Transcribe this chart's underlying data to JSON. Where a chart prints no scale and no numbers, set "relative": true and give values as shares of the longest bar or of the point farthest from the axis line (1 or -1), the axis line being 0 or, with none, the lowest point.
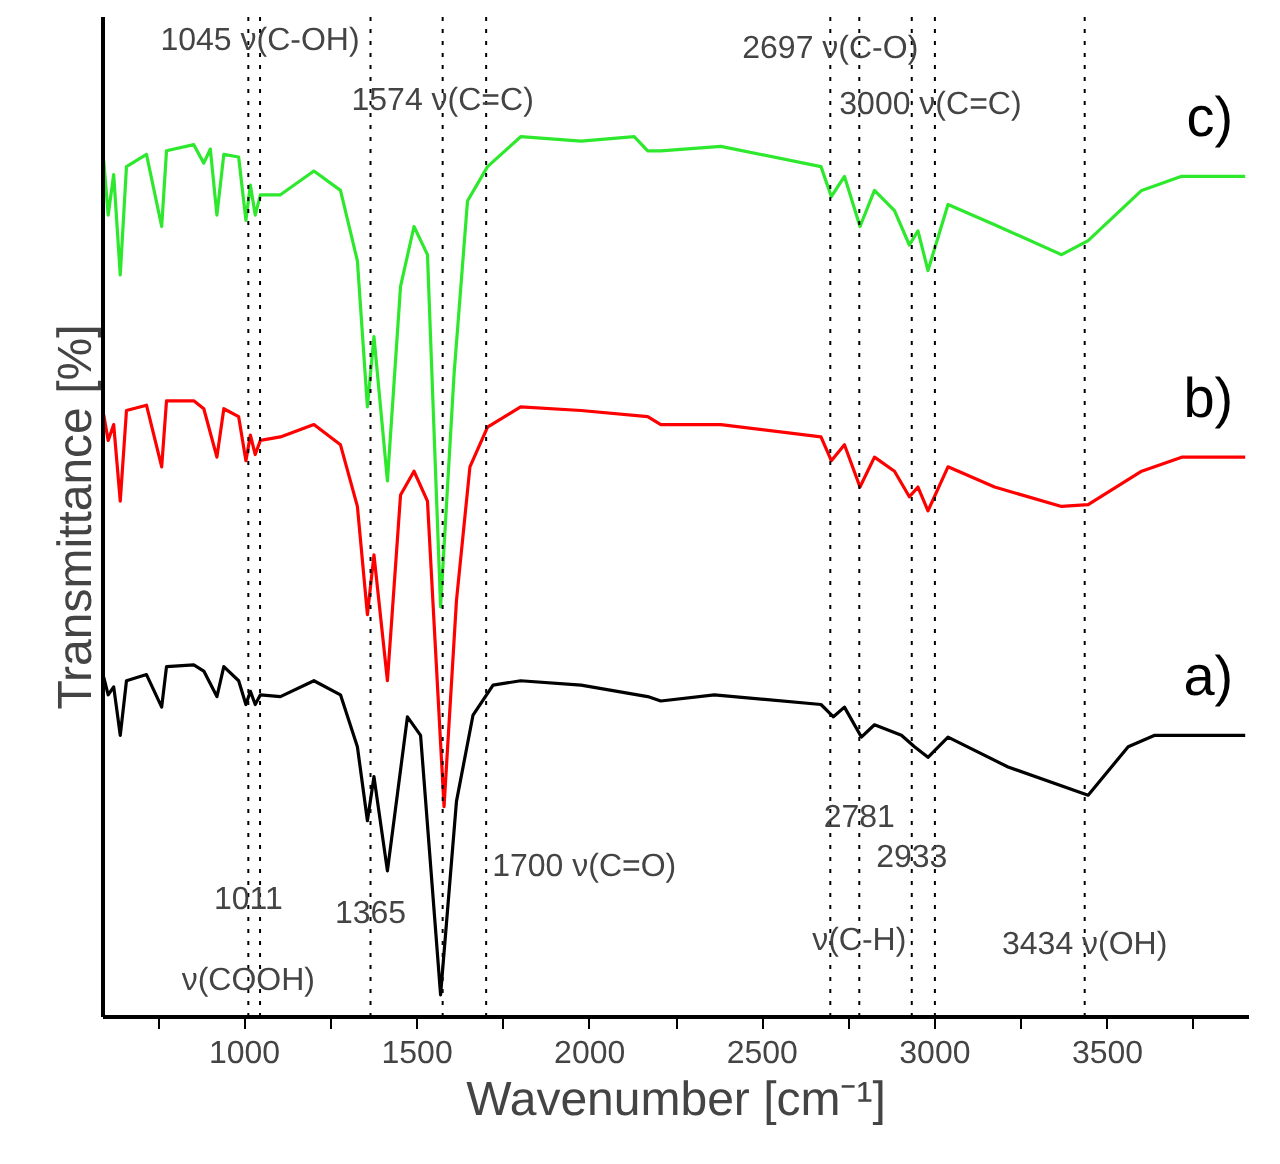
{
  "chart_data": {
    "type": "line",
    "relative": true,
    "xlabel": "Wavenumber [cm⁻¹]",
    "ylabel": "Transmittance [%]",
    "xlim": [
      590,
      3910
    ],
    "xticks": [
      {
        "value": 750,
        "label": null
      },
      1000,
      {
        "value": 1250,
        "label": null
      },
      1500,
      {
        "value": 1750,
        "label": null
      },
      2000,
      {
        "value": 2250,
        "label": null
      },
      2500,
      {
        "value": 2750,
        "label": null
      },
      3000,
      {
        "value": 3250,
        "label": null
      },
      3500,
      {
        "value": 3750,
        "label": null
      }
    ],
    "grid": false,
    "legend": false,
    "marker": "none",
    "line_style": "solid",
    "series": [
      {
        "name": "c)",
        "color": "#2ee82e",
        "x": [
          592,
          605,
          621,
          640,
          658,
          716,
          760,
          774,
          853,
          882,
          901,
          920,
          940,
          983,
          1004,
          1017,
          1031,
          1046,
          1104,
          1201,
          1278,
          1327,
          1356,
          1375,
          1414,
          1452,
          1491,
          1530,
          1568,
          1607,
          1646,
          1704,
          1800,
          1975,
          2129,
          2168,
          2206,
          2380,
          2670,
          2700,
          2738,
          2783,
          2825,
          2883,
          2926,
          2951,
          2980,
          3038,
          3173,
          3367,
          3444,
          3599,
          3715,
          3899
        ],
        "values": [
          0.973,
          0.911,
          0.957,
          0.843,
          0.966,
          0.98,
          0.898,
          0.984,
          0.991,
          0.97,
          0.986,
          0.911,
          0.98,
          0.977,
          0.905,
          0.945,
          0.911,
          0.934,
          0.934,
          0.961,
          0.939,
          0.859,
          0.693,
          0.773,
          0.609,
          0.83,
          0.898,
          0.866,
          0.466,
          0.73,
          0.927,
          0.966,
          1.0,
          0.995,
          1.0,
          0.984,
          0.984,
          0.989,
          0.966,
          0.932,
          0.955,
          0.898,
          0.939,
          0.916,
          0.877,
          0.893,
          0.848,
          0.923,
          0.9,
          0.866,
          0.882,
          0.939,
          0.955,
          0.955
        ]
      },
      {
        "name": "b)",
        "color": "#ff0000",
        "x": [
          592,
          605,
          621,
          640,
          658,
          716,
          760,
          774,
          853,
          882,
          920,
          940,
          983,
          1004,
          1017,
          1031,
          1046,
          1104,
          1201,
          1278,
          1327,
          1356,
          1375,
          1414,
          1452,
          1491,
          1530,
          1578,
          1614,
          1653,
          1704,
          1800,
          1975,
          2168,
          2206,
          2380,
          2670,
          2700,
          2738,
          2783,
          2825,
          2883,
          2926,
          2951,
          2980,
          3038,
          3173,
          3367,
          3444,
          3599,
          3715,
          3899
        ],
        "values": [
          0.684,
          0.655,
          0.673,
          0.586,
          0.689,
          0.695,
          0.625,
          0.7,
          0.7,
          0.691,
          0.636,
          0.691,
          0.682,
          0.632,
          0.661,
          0.639,
          0.655,
          0.659,
          0.673,
          0.65,
          0.58,
          0.457,
          0.525,
          0.382,
          0.593,
          0.62,
          0.586,
          0.239,
          0.473,
          0.625,
          0.67,
          0.693,
          0.689,
          0.682,
          0.673,
          0.673,
          0.659,
          0.632,
          0.65,
          0.602,
          0.636,
          0.62,
          0.591,
          0.602,
          0.575,
          0.625,
          0.602,
          0.58,
          0.582,
          0.62,
          0.636,
          0.636
        ]
      },
      {
        "name": "a)",
        "color": "#000000",
        "x": [
          592,
          605,
          621,
          640,
          658,
          716,
          760,
          774,
          853,
          882,
          920,
          940,
          983,
          1004,
          1017,
          1031,
          1046,
          1104,
          1201,
          1278,
          1327,
          1356,
          1375,
          1414,
          1472,
          1510,
          1568,
          1614,
          1662,
          1720,
          1800,
          1975,
          2168,
          2206,
          2361,
          2670,
          2706,
          2738,
          2787,
          2825,
          2903,
          2941,
          2980,
          3038,
          3212,
          3444,
          3560,
          3637,
          3899
        ],
        "values": [
          0.386,
          0.366,
          0.375,
          0.32,
          0.382,
          0.389,
          0.352,
          0.398,
          0.4,
          0.393,
          0.364,
          0.398,
          0.382,
          0.355,
          0.37,
          0.355,
          0.366,
          0.364,
          0.382,
          0.366,
          0.307,
          0.223,
          0.273,
          0.166,
          0.341,
          0.32,
          0.025,
          0.245,
          0.343,
          0.377,
          0.382,
          0.377,
          0.364,
          0.359,
          0.366,
          0.355,
          0.341,
          0.352,
          0.318,
          0.332,
          0.32,
          0.307,
          0.295,
          0.318,
          0.284,
          0.252,
          0.307,
          0.32,
          0.32
        ]
      }
    ],
    "ref_lines": [
      {
        "axis": "x",
        "value": 1011,
        "line_style": "dotted",
        "color": "#000000"
      },
      {
        "axis": "x",
        "value": 1045,
        "line_style": "dotted",
        "color": "#000000"
      },
      {
        "axis": "x",
        "value": 1365,
        "line_style": "dotted",
        "color": "#000000"
      },
      {
        "axis": "x",
        "value": 1574,
        "line_style": "dotted",
        "color": "#000000"
      },
      {
        "axis": "x",
        "value": 1700,
        "line_style": "dotted",
        "color": "#000000",
        "label": "1700  ν(C=O)"
      },
      {
        "axis": "x",
        "value": 2697,
        "line_style": "dotted",
        "color": "#000000"
      },
      {
        "axis": "x",
        "value": 2781,
        "line_style": "dotted",
        "color": "#000000"
      },
      {
        "axis": "x",
        "value": 2933,
        "line_style": "dotted",
        "color": "#000000"
      },
      {
        "axis": "x",
        "value": 3000,
        "line_style": "dotted",
        "color": "#000000"
      },
      {
        "axis": "x",
        "value": 3434,
        "line_style": "dotted",
        "color": "#000000"
      }
    ],
    "annotations": [
      {
        "text": "1045 ν(C-OH)",
        "x": 1045,
        "y": 1.109
      },
      {
        "text": "1574 ν(C=C)",
        "x": 1574,
        "y": 1.041
      },
      {
        "text": "2697 ν(C-O)",
        "x": 2697,
        "y": 1.1
      },
      {
        "text": "3000  ν(C=C)",
        "x": 3000,
        "y": 1.036
      },
      {
        "text": "1011",
        "x": 1011,
        "y": 0.136
      },
      {
        "text": "1365",
        "x": 1365,
        "y": 0.12
      },
      {
        "text": "2781",
        "x": 2781,
        "y": 0.23
      },
      {
        "text": "2933",
        "x": 2933,
        "y": 0.184
      },
      {
        "text": "ν(COOH)",
        "x": 1011,
        "y": 0.041
      },
      {
        "text": "ν(C-H)",
        "x": 2781,
        "y": 0.086
      },
      {
        "text": "3434 ν(OH)",
        "x": 3434,
        "y": 0.082
      }
    ]
  }
}
